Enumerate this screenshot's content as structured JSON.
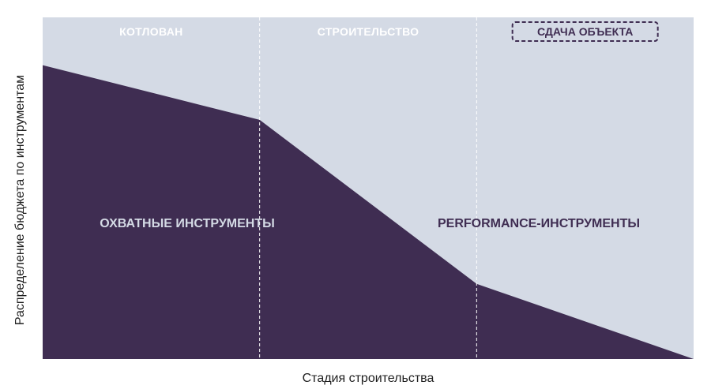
{
  "chart_data": {
    "type": "area",
    "title": "",
    "xlabel": "Стадия строительства",
    "ylabel": "Распределение бюджета по инструментам",
    "stages": [
      {
        "label": "КОТЛОВАН",
        "highlighted": false
      },
      {
        "label": "СТРОИТЕЛЬСТВО",
        "highlighted": false
      },
      {
        "label": "СДАЧА ОБЪЕКТА",
        "highlighted": true
      }
    ],
    "series": [
      {
        "name": "ОХВАТНЫЕ ИНСТРУМЕНТЫ",
        "x": [
          0,
          1,
          2,
          3
        ],
        "values": [
          0.86,
          0.7,
          0.22,
          0.0
        ]
      }
    ],
    "region_labels": {
      "lower": "ОХВАТНЫЕ ИНСТРУМЕНТЫ",
      "upper": "PERFORMANCE-ИНСТРУМЕНТЫ"
    },
    "xlim": [
      0,
      3
    ],
    "ylim": [
      0,
      1
    ],
    "colors": {
      "reach_fill": "#3f2d52",
      "performance_fill": "#d4dae5",
      "divider": "#ffffff",
      "highlight_border": "#3f2d52"
    },
    "grid": false,
    "legend": "none"
  }
}
